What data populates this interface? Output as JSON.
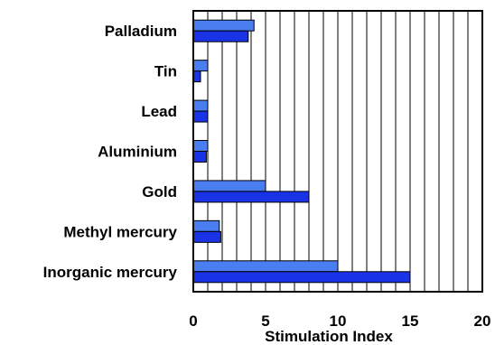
{
  "chart_data": {
    "type": "bar",
    "orientation": "horizontal",
    "categories": [
      "Palladium",
      "Tin",
      "Lead",
      "Aluminium",
      "Gold",
      "Methyl mercury",
      "Inorganic mercury"
    ],
    "series": [
      {
        "color": "#4a7ef0",
        "values": [
          4.2,
          1.0,
          1.0,
          1.0,
          5.0,
          1.8,
          10.0
        ]
      },
      {
        "color": "#1a33e6",
        "values": [
          3.8,
          0.5,
          1.0,
          0.9,
          8.0,
          1.9,
          15.0
        ]
      }
    ],
    "xlabel": "Stimulation Index",
    "xlim": [
      0,
      20
    ],
    "xticks": [
      "0",
      "5",
      "10",
      "15",
      "20"
    ],
    "vertical_grid_step": 1,
    "grid": true,
    "legend": "none"
  }
}
